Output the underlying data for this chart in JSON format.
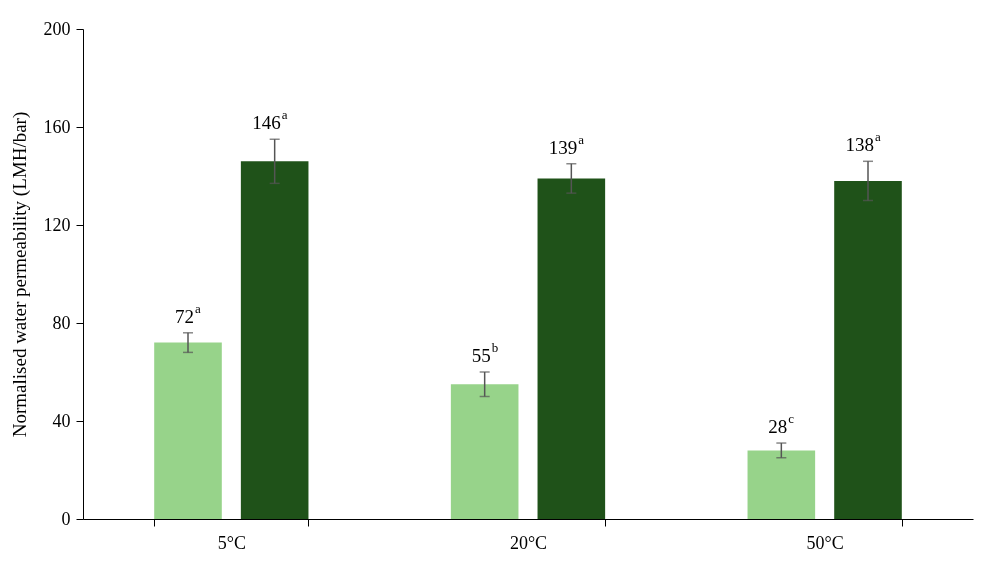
{
  "chart_data": {
    "type": "bar",
    "ylabel": "Normalised water permeability (LMH/bar)",
    "categories": [
      "5°C",
      "20°C",
      "50°C"
    ],
    "ylim": [
      0,
      200
    ],
    "yticks": [
      0,
      40,
      80,
      120,
      160,
      200
    ],
    "series": [
      {
        "color": "#97d38a",
        "values": [
          72,
          55,
          28
        ],
        "errors": [
          4,
          5,
          3
        ],
        "value_labels": [
          "72$^{a}$",
          "55$^{b}$",
          "28$^{c}$"
        ]
      },
      {
        "color": "#1f5219",
        "values": [
          146,
          139,
          138
        ],
        "errors": [
          9,
          6,
          8
        ],
        "value_labels": [
          "146$^{a}$",
          "139$^{a}$",
          "138$^{a}$"
        ]
      }
    ]
  }
}
